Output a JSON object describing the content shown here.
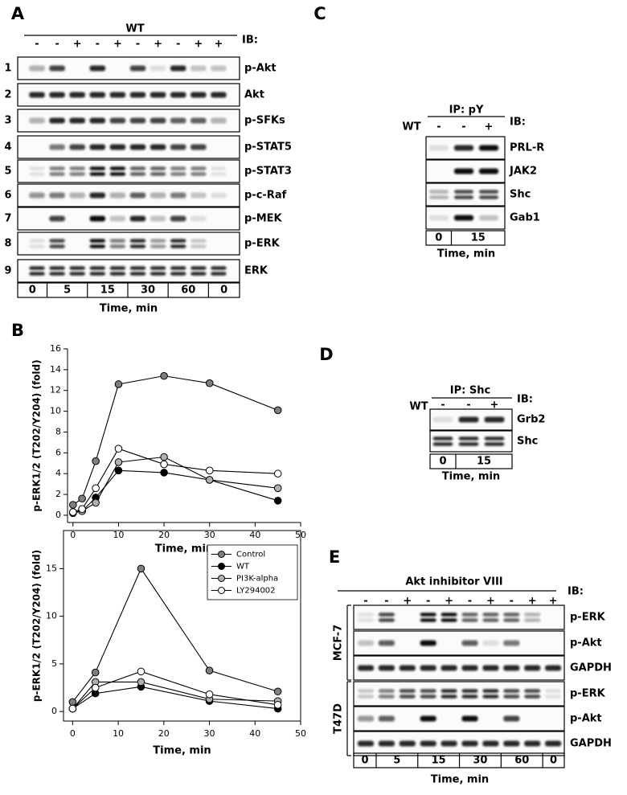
{
  "panel_labels": [
    "A",
    "B",
    "C",
    "D",
    "E"
  ],
  "panel_a": {
    "group_label": "WT",
    "ib_label": "IB:",
    "lane_signs": [
      "-",
      "-",
      "+",
      "-",
      "+",
      "-",
      "+",
      "-",
      "+",
      "+"
    ],
    "rows": [
      {
        "number": 1,
        "label": "p-Akt"
      },
      {
        "number": 2,
        "label": "Akt"
      },
      {
        "number": 3,
        "label": "p-SFKs"
      },
      {
        "number": 4,
        "label": "p-STAT5"
      },
      {
        "number": 5,
        "label": "p-STAT3"
      },
      {
        "number": 6,
        "label": "p-c-Raf"
      },
      {
        "number": 7,
        "label": "p-MEK"
      },
      {
        "number": 8,
        "label": "p-ERK"
      },
      {
        "number": 9,
        "label": "ERK"
      }
    ],
    "time_groups": [
      0,
      5,
      15,
      30,
      60,
      0
    ],
    "time_label": "Time, min"
  },
  "panel_c": {
    "ip_label": "IP: pY",
    "ib_label": "IB:",
    "wt_label": "WT",
    "lane_signs": [
      "-",
      "-",
      "+"
    ],
    "rows": [
      "PRL-R",
      "JAK2",
      "Shc",
      "Gab1"
    ],
    "time_groups": [
      0,
      15
    ],
    "time_label": "Time, min"
  },
  "panel_d": {
    "ip_label": "IP: Shc",
    "ib_label": "IB:",
    "wt_label": "WT",
    "lane_signs": [
      "-",
      "-",
      "+"
    ],
    "rows": [
      "Grb2",
      "Shc"
    ],
    "time_groups": [
      0,
      15
    ],
    "time_label": "Time, min"
  },
  "panel_e": {
    "group_label": "Akt inhibitor VIII",
    "ib_label": "IB:",
    "lane_signs": [
      "-",
      "-",
      "+",
      "-",
      "+",
      "-",
      "+",
      "-",
      "+",
      "+"
    ],
    "cell_lines": [
      {
        "name": "MCF-7",
        "rows": [
          "p-ERK",
          "p-Akt",
          "GAPDH"
        ]
      },
      {
        "name": "T47D",
        "rows": [
          "p-ERK",
          "p-Akt",
          "GAPDH"
        ]
      }
    ],
    "time_groups": [
      0,
      5,
      15,
      30,
      60,
      0
    ],
    "time_label": "Time, min"
  },
  "chart_data": [
    {
      "type": "line",
      "x_label": "Time, min",
      "y_label": "p-ERK1/2 (T202/Y204) (fold)",
      "x": [
        0,
        2,
        5,
        10,
        20,
        30,
        45
      ],
      "series": [
        {
          "color": "#7f7f7f",
          "values": [
            1.0,
            1.6,
            5.2,
            12.6,
            13.4,
            12.7,
            10.1
          ]
        },
        {
          "color": "#000000",
          "values": [
            0.2,
            0.4,
            1.7,
            4.3,
            4.1,
            3.4,
            1.4
          ]
        },
        {
          "color": "#b0b0b0",
          "values": [
            0.3,
            0.4,
            1.2,
            5.1,
            5.6,
            3.4,
            2.6
          ]
        },
        {
          "color": "#ffffff",
          "values": [
            0.3,
            0.6,
            2.6,
            6.4,
            4.9,
            4.3,
            4.0
          ]
        }
      ],
      "xlim": [
        -1.2,
        50
      ],
      "ylim": [
        -0.7,
        16
      ],
      "xticks": [
        0,
        10,
        20,
        30,
        40,
        50
      ],
      "yticks": [
        0,
        2,
        4,
        6,
        8,
        10,
        12,
        14,
        16
      ],
      "frame": false
    },
    {
      "type": "line",
      "x_label": "Time, min",
      "y_label": "p-ERK1/2 (T202/Y204) (fold)",
      "x": [
        0,
        5,
        15,
        30,
        45
      ],
      "series": [
        {
          "name": "Control",
          "color": "#7f7f7f",
          "values": [
            1.0,
            4.1,
            15.0,
            4.3,
            2.1
          ]
        },
        {
          "name": "WT",
          "color": "#000000",
          "values": [
            0.3,
            1.9,
            2.6,
            1.1,
            0.3
          ]
        },
        {
          "name": "PI3K-alpha",
          "color": "#b0b0b0",
          "values": [
            0.3,
            3.1,
            3.1,
            1.3,
            1.1
          ]
        },
        {
          "name": "LY294002",
          "color": "#ffffff",
          "values": [
            0.3,
            2.5,
            4.2,
            1.8,
            0.7
          ]
        }
      ],
      "xlim": [
        -2,
        50
      ],
      "ylim": [
        -1,
        19
      ],
      "xticks": [
        0,
        10,
        20,
        30,
        40,
        50
      ],
      "yticks": [
        0,
        5,
        10,
        15
      ],
      "frame": true,
      "legend": "upper right"
    }
  ]
}
